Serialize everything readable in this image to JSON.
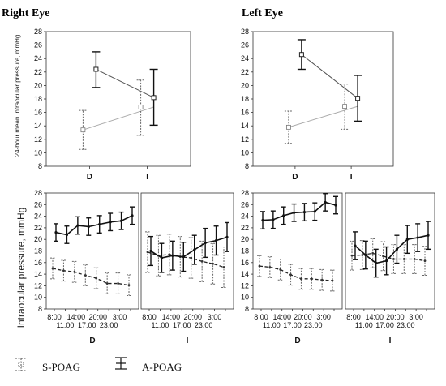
{
  "titles": {
    "right_eye": "Right Eye",
    "left_eye": "Left Eye"
  },
  "top_ylabel": "24-hour mean intraocular pressure, mmHg",
  "bottom_ylabel": "Intraocular pressure, mmHg",
  "legend": {
    "s_poag": "S-POAG",
    "a_poag": "A-POAG"
  },
  "chart_data": [
    {
      "id": "top-right-eye",
      "type": "line",
      "categories": [
        "D",
        "I"
      ],
      "ylim": [
        8,
        28
      ],
      "yticks": [
        "8",
        "10",
        "12",
        "14",
        "16",
        "18",
        "20",
        "22",
        "24",
        "26",
        "28"
      ],
      "series": [
        {
          "name": "S-POAG",
          "values": [
            13.4,
            16.8
          ],
          "err": [
            [
              10.5,
              16.3
            ],
            [
              12.6,
              20.8
            ]
          ]
        },
        {
          "name": "A-POAG",
          "values": [
            22.4,
            18.2
          ],
          "err": [
            [
              19.7,
              25.0
            ],
            [
              14.1,
              22.4
            ]
          ]
        }
      ]
    },
    {
      "id": "top-left-eye",
      "type": "line",
      "categories": [
        "D",
        "I"
      ],
      "ylim": [
        8,
        28
      ],
      "yticks": [
        "8",
        "10",
        "12",
        "14",
        "16",
        "18",
        "20",
        "22",
        "24",
        "26",
        "28"
      ],
      "series": [
        {
          "name": "S-POAG",
          "values": [
            13.8,
            16.9
          ],
          "err": [
            [
              11.4,
              16.2
            ],
            [
              13.5,
              20.2
            ]
          ]
        },
        {
          "name": "A-POAG",
          "values": [
            24.6,
            18.1
          ],
          "err": [
            [
              22.4,
              26.8
            ],
            [
              14.7,
              21.5
            ]
          ]
        }
      ]
    },
    {
      "id": "bottom-right-eye",
      "type": "line",
      "panels": [
        {
          "label": "D",
          "ylim": [
            8,
            28
          ],
          "yticks": [
            "8",
            "10",
            "12",
            "14",
            "16",
            "18",
            "20",
            "22",
            "24",
            "26",
            "28"
          ],
          "xticks_top": [
            "8:00",
            "14:00",
            "20:00",
            "3:00"
          ],
          "xticks_bottom": [
            "11:00",
            "17:00",
            "23:00"
          ],
          "series": [
            {
              "name": "S-POAG",
              "values": [
                15.0,
                14.6,
                14.4,
                13.8,
                13.3,
                12.4,
                12.4,
                12.1
              ],
              "err": [
                1.8,
                1.8,
                1.8,
                1.8,
                1.8,
                1.8,
                1.8,
                1.8
              ]
            },
            {
              "name": "A-POAG",
              "values": [
                21.2,
                20.8,
                22.4,
                22.2,
                22.6,
                23.0,
                23.2,
                24.1
              ],
              "err": [
                1.5,
                1.5,
                1.5,
                1.5,
                1.5,
                1.5,
                1.5,
                1.5
              ]
            }
          ]
        },
        {
          "label": "I",
          "ylim": [
            8,
            28
          ],
          "yticks": [],
          "xticks_top": [
            "8:00",
            "14:00",
            "20:00",
            "3:00"
          ],
          "xticks_bottom": [
            "11:00",
            "17:00",
            "23:00"
          ],
          "series": [
            {
              "name": "S-POAG",
              "values": [
                17.8,
                17.2,
                17.4,
                17.0,
                16.8,
                16.2,
                15.8,
                15.2
              ],
              "err": [
                3.5,
                3.5,
                3.5,
                3.5,
                3.5,
                3.5,
                3.5,
                3.5
              ]
            },
            {
              "name": "A-POAG",
              "values": [
                18.0,
                16.8,
                17.2,
                17.0,
                18.2,
                19.4,
                19.8,
                20.4
              ],
              "err": [
                2.5,
                2.5,
                2.5,
                2.5,
                2.5,
                2.5,
                2.5,
                2.5
              ]
            }
          ]
        }
      ]
    },
    {
      "id": "bottom-left-eye",
      "type": "line",
      "panels": [
        {
          "label": "D",
          "ylim": [
            8,
            28
          ],
          "yticks": [
            "8",
            "10",
            "12",
            "14",
            "16",
            "18",
            "20",
            "22",
            "24",
            "26",
            "28"
          ],
          "xticks_top": [
            "8:00",
            "14:00",
            "20:00",
            "3:00"
          ],
          "xticks_bottom": [
            "11:00",
            "17:00",
            "23:00"
          ],
          "series": [
            {
              "name": "S-POAG",
              "values": [
                15.4,
                15.2,
                14.8,
                13.9,
                13.2,
                13.2,
                13.0,
                12.9
              ],
              "err": [
                1.8,
                1.8,
                1.8,
                1.8,
                1.8,
                1.8,
                1.8,
                1.8
              ]
            },
            {
              "name": "A-POAG",
              "values": [
                23.3,
                23.4,
                24.1,
                24.6,
                24.7,
                24.8,
                26.4,
                25.9
              ],
              "err": [
                1.5,
                1.5,
                1.5,
                1.5,
                1.5,
                1.5,
                1.5,
                1.5
              ]
            }
          ]
        },
        {
          "label": "I",
          "ylim": [
            8,
            28
          ],
          "yticks": [],
          "xticks_top": [
            "8:00",
            "14:00",
            "20:00",
            "3:00"
          ],
          "xticks_bottom": [
            "11:00",
            "17:00",
            "23:00"
          ],
          "series": [
            {
              "name": "S-POAG",
              "values": [
                17.2,
                17.3,
                17.6,
                17.1,
                16.6,
                16.6,
                16.6,
                16.3
              ],
              "err": [
                2.5,
                2.5,
                2.5,
                2.5,
                2.5,
                2.5,
                2.5,
                2.5
              ]
            },
            {
              "name": "A-POAG",
              "values": [
                18.9,
                17.3,
                15.9,
                16.3,
                18.3,
                20.0,
                20.3,
                20.7
              ],
              "err": [
                2.4,
                2.4,
                2.4,
                2.4,
                2.4,
                2.4,
                2.4,
                2.4
              ]
            }
          ]
        }
      ]
    }
  ]
}
